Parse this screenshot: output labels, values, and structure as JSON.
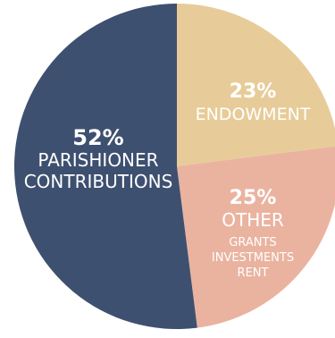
{
  "chart_data": {
    "type": "pie",
    "title": "",
    "slices": [
      {
        "key": "parishioner",
        "value": 52,
        "value_label": "52%",
        "label_lines": [
          "PARISHIONER",
          "CONTRIBUTIONS"
        ],
        "sub_lines": [],
        "color": "#3e5070"
      },
      {
        "key": "endowment",
        "value": 23,
        "value_label": "23%",
        "label_lines": [
          "ENDOWMENT"
        ],
        "sub_lines": [],
        "color": "#e7cc99"
      },
      {
        "key": "other",
        "value": 25,
        "value_label": "25%",
        "label_lines": [
          "OTHER"
        ],
        "sub_lines": [
          "GRANTS",
          "INVESTMENTS",
          "RENT"
        ],
        "color": "#eab3a0"
      }
    ],
    "start_angle_deg": 0,
    "direction": "clockwise"
  }
}
